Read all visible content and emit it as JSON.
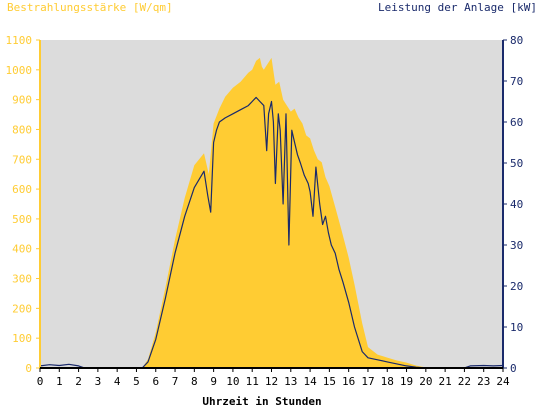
{
  "chart_data": {
    "type": "area",
    "left_axis_title": "Bestrahlungsstärke [W/qm]",
    "right_axis_title": "Leistung der Anlage [kW]",
    "xlabel": "Uhrzeit in Stunden",
    "xlim": [
      0,
      24
    ],
    "x_ticks": [
      "0",
      "1",
      "2",
      "3",
      "4",
      "5",
      "6",
      "7",
      "8",
      "9",
      "10",
      "11",
      "12",
      "13",
      "14",
      "15",
      "16",
      "17",
      "18",
      "19",
      "20",
      "21",
      "22",
      "23",
      "24"
    ],
    "y_left_lim": [
      0,
      1100
    ],
    "y_left_ticks": [
      "0",
      "100",
      "200",
      "300",
      "400",
      "500",
      "600",
      "700",
      "800",
      "900",
      "1000",
      "1100"
    ],
    "y_right_lim": [
      0,
      80
    ],
    "y_right_ticks": [
      "0",
      "10",
      "20",
      "30",
      "40",
      "50",
      "60",
      "70",
      "80"
    ],
    "colors": {
      "plot_background": "#dcdcdc",
      "irradiance_fill": "#ffcc33",
      "power_line": "#1a2a6b",
      "left_axis": "#ffcc33",
      "right_axis": "#1a2a6b",
      "x_axis": "#000000"
    },
    "series": [
      {
        "axis": "left",
        "style": "area",
        "x": [
          0,
          5.3,
          5.6,
          6.0,
          6.5,
          7.0,
          7.5,
          8.0,
          8.5,
          8.75,
          9.0,
          9.3,
          9.6,
          10.0,
          10.4,
          10.8,
          11.0,
          11.2,
          11.4,
          11.5,
          11.6,
          11.8,
          12.0,
          12.2,
          12.4,
          12.6,
          12.8,
          13.0,
          13.2,
          13.4,
          13.6,
          13.8,
          14.0,
          14.2,
          14.4,
          14.6,
          14.8,
          15.0,
          15.3,
          15.6,
          16.0,
          16.3,
          16.7,
          17.0,
          17.5,
          18.0,
          18.5,
          19.0,
          19.5,
          20.0,
          20.3,
          24
        ],
        "values": [
          0,
          0,
          30,
          120,
          270,
          430,
          570,
          680,
          720,
          650,
          820,
          870,
          910,
          940,
          960,
          990,
          1000,
          1030,
          1040,
          1010,
          1000,
          1020,
          1040,
          950,
          960,
          900,
          880,
          860,
          870,
          840,
          820,
          780,
          770,
          730,
          700,
          690,
          640,
          610,
          540,
          470,
          370,
          280,
          150,
          70,
          45,
          35,
          25,
          18,
          8,
          2,
          0,
          0
        ]
      },
      {
        "axis": "right",
        "style": "line",
        "x": [
          0,
          0.5,
          1.0,
          1.5,
          2.0,
          2.3,
          4.5,
          5.3,
          5.6,
          6.0,
          6.5,
          7.0,
          7.5,
          8.0,
          8.5,
          8.7,
          8.85,
          9.0,
          9.15,
          9.3,
          9.6,
          10.0,
          10.4,
          10.8,
          11.0,
          11.2,
          11.4,
          11.6,
          11.75,
          11.85,
          12.0,
          12.1,
          12.2,
          12.35,
          12.45,
          12.6,
          12.75,
          12.9,
          13.05,
          13.2,
          13.35,
          13.5,
          13.7,
          13.9,
          14.0,
          14.15,
          14.3,
          14.5,
          14.65,
          14.8,
          14.95,
          15.1,
          15.3,
          15.5,
          15.7,
          16.0,
          16.3,
          16.7,
          17.0,
          17.5,
          18.0,
          18.5,
          19.0,
          19.5,
          20.0,
          20.3,
          22.0,
          22.3,
          23.0,
          23.5,
          24.0
        ],
        "values": [
          0.5,
          0.8,
          0.6,
          0.9,
          0.5,
          0,
          0,
          0,
          1.5,
          7,
          17,
          28,
          37,
          44,
          48,
          42,
          38,
          55,
          58,
          60,
          61,
          62,
          63,
          64,
          65,
          66,
          65,
          64,
          53,
          62,
          65,
          60,
          45,
          62,
          58,
          40,
          62,
          30,
          58,
          55,
          52,
          50,
          47,
          45,
          43,
          37,
          49,
          40,
          35,
          37,
          33,
          30,
          28,
          24,
          21,
          16,
          10,
          4,
          2.5,
          2,
          1.5,
          1,
          0.5,
          0.2,
          0,
          0,
          0,
          0.5,
          0.6,
          0.5,
          0.6
        ]
      }
    ]
  }
}
